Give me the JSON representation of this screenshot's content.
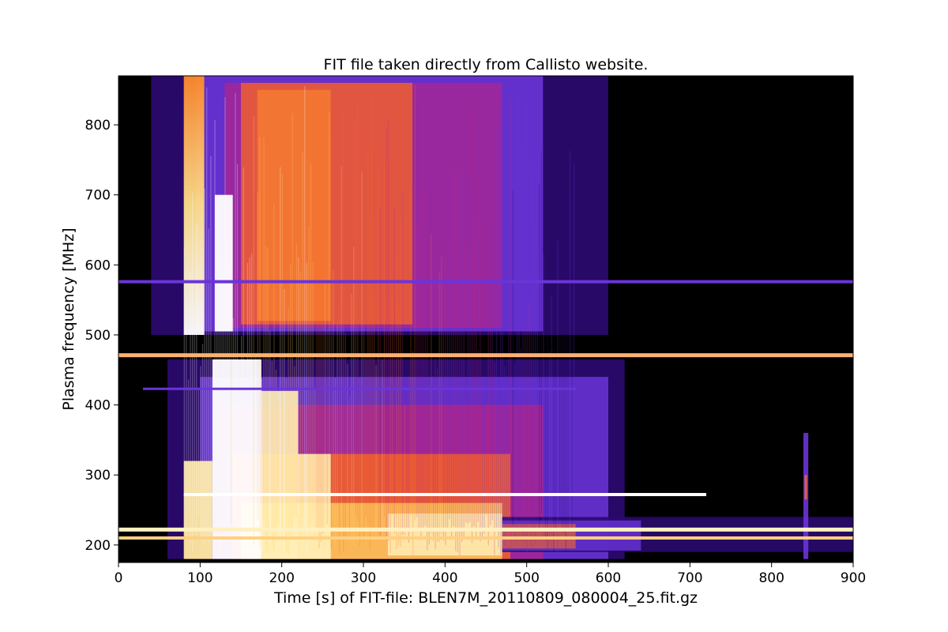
{
  "chart_data": {
    "type": "heatmap",
    "title": "FIT file taken directly from Callisto website.",
    "xlabel": "Time [s] of FIT-file: BLEN7M_20110809_080004_25.fit.gz",
    "ylabel": "Plasma frequency [MHz]",
    "xlim": [
      0,
      900
    ],
    "ylim": [
      175,
      870
    ],
    "xticks": [
      0,
      100,
      200,
      300,
      400,
      500,
      600,
      700,
      800,
      900
    ],
    "yticks": [
      200,
      300,
      400,
      500,
      600,
      700,
      800
    ],
    "colormap": "black-purple-orange-yellow-white",
    "colors": {
      "background": "#000000",
      "low": "#2a0a6e",
      "mid": "#6a35d8",
      "high": "#ff6a1a",
      "peak": "#ffffff"
    },
    "features": {
      "burst_onset_s": 80,
      "strong_emission_s": [
        110,
        260
      ],
      "decay_end_s_at_high_freq": 560,
      "low_freq_tail_end_s": 900,
      "interference_lines_mhz": [
        576,
        471,
        423,
        272,
        222,
        210
      ],
      "isolated_spike": {
        "time_s": 842,
        "freq_range_mhz": [
          180,
          360
        ]
      }
    }
  }
}
